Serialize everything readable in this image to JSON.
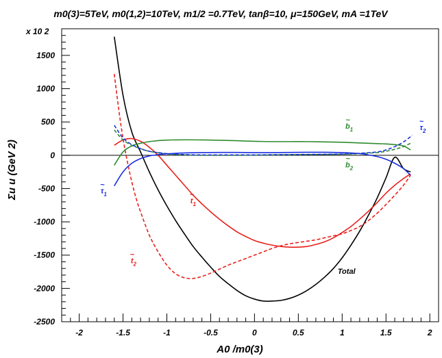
{
  "chart_data": {
    "type": "line",
    "title": "m0(3)=5TeV, m0(1,2)=10TeV, m1/2 =0.7TeV, tanβ=10, μ=150GeV, mA =1TeV",
    "xlabel": "A0 /m0(3)",
    "ylabel": "Σu u (GeV 2)",
    "y_multiplier": "x 10 2",
    "xlim": [
      -2.2,
      2.1
    ],
    "ylim": [
      -2500,
      1900
    ],
    "xticks": [
      "-2",
      "-1.5",
      "-1",
      "-0.5",
      "0",
      "0.5",
      "1",
      "1.5",
      "2"
    ],
    "yticks": [
      "-2500",
      "-2000",
      "-1500",
      "-1000",
      "-500",
      "0",
      "500",
      "1000",
      "1500"
    ],
    "grid": false,
    "zero_line": true,
    "series": [
      {
        "name": "Total",
        "color": "#000000",
        "style": "solid",
        "x": [
          -1.6,
          -1.5,
          -1.4,
          -1.3,
          -1.2,
          -1.1,
          -1.0,
          -0.9,
          -0.8,
          -0.7,
          -0.6,
          -0.5,
          -0.4,
          -0.3,
          -0.2,
          -0.1,
          0.0,
          0.1,
          0.2,
          0.3,
          0.4,
          0.5,
          0.6,
          0.7,
          0.8,
          0.9,
          1.0,
          1.1,
          1.2,
          1.3,
          1.4,
          1.5,
          1.6,
          1.7,
          1.78
        ],
        "y": [
          1780,
          900,
          350,
          50,
          -250,
          -520,
          -760,
          -980,
          -1180,
          -1370,
          -1530,
          -1680,
          -1820,
          -1930,
          -2030,
          -2110,
          -2160,
          -2190,
          -2190,
          -2180,
          -2150,
          -2100,
          -2030,
          -1940,
          -1830,
          -1700,
          -1540,
          -1350,
          -1140,
          -900,
          -640,
          -340,
          -30,
          -200,
          -250
        ]
      },
      {
        "name": "t1",
        "color": "#e8201a",
        "style": "solid",
        "x": [
          -1.6,
          -1.5,
          -1.4,
          -1.3,
          -1.2,
          -1.1,
          -1.0,
          -0.9,
          -0.8,
          -0.7,
          -0.6,
          -0.5,
          -0.4,
          -0.3,
          -0.2,
          -0.1,
          0.0,
          0.1,
          0.2,
          0.3,
          0.4,
          0.5,
          0.6,
          0.7,
          0.8,
          0.9,
          1.0,
          1.1,
          1.2,
          1.3,
          1.4,
          1.5,
          1.6,
          1.7,
          1.78
        ],
        "y": [
          150,
          230,
          250,
          210,
          120,
          0,
          -150,
          -300,
          -450,
          -600,
          -730,
          -850,
          -960,
          -1060,
          -1150,
          -1220,
          -1280,
          -1320,
          -1350,
          -1370,
          -1380,
          -1380,
          -1370,
          -1340,
          -1300,
          -1240,
          -1160,
          -1070,
          -960,
          -840,
          -710,
          -570,
          -450,
          -350,
          -280
        ]
      },
      {
        "name": "t2",
        "color": "#e8201a",
        "style": "dashed",
        "x": [
          -1.6,
          -1.55,
          -1.5,
          -1.45,
          -1.4,
          -1.35,
          -1.3,
          -1.2,
          -1.1,
          -1.0,
          -0.9,
          -0.8,
          -0.7,
          -0.6,
          -0.5,
          -0.4,
          -0.3,
          -0.2,
          -0.1,
          0.0,
          0.1,
          0.2,
          0.3,
          0.4,
          0.5,
          0.6,
          0.7,
          0.8,
          0.9,
          1.0,
          1.1,
          1.2,
          1.3,
          1.4,
          1.5,
          1.6,
          1.7,
          1.78
        ],
        "y": [
          1220,
          700,
          250,
          -100,
          -400,
          -650,
          -850,
          -1200,
          -1450,
          -1650,
          -1780,
          -1840,
          -1850,
          -1820,
          -1770,
          -1710,
          -1650,
          -1600,
          -1550,
          -1500,
          -1450,
          -1400,
          -1360,
          -1330,
          -1310,
          -1290,
          -1270,
          -1240,
          -1210,
          -1180,
          -1130,
          -1070,
          -980,
          -870,
          -740,
          -600,
          -450,
          -300
        ]
      },
      {
        "name": "b1",
        "color": "#2e8b2e",
        "style": "solid",
        "x": [
          -1.6,
          -1.5,
          -1.4,
          -1.3,
          -1.2,
          -1.1,
          -1.0,
          -0.8,
          -0.6,
          -0.4,
          -0.2,
          0.0,
          0.2,
          0.4,
          0.6,
          0.8,
          1.0,
          1.2,
          1.4,
          1.5,
          1.6,
          1.7,
          1.78
        ],
        "y": [
          -150,
          50,
          140,
          180,
          205,
          220,
          228,
          232,
          230,
          225,
          218,
          210,
          205,
          205,
          205,
          200,
          195,
          185,
          175,
          170,
          160,
          140,
          80
        ]
      },
      {
        "name": "b2",
        "color": "#2e8b2e",
        "style": "dashed",
        "x": [
          -1.6,
          -1.5,
          -1.4,
          -1.3,
          -1.2,
          -1.0,
          -0.8,
          -0.6,
          -0.4,
          -0.2,
          0.0,
          0.2,
          0.4,
          0.6,
          0.8,
          1.0,
          1.2,
          1.4,
          1.5,
          1.6,
          1.7,
          1.78
        ],
        "y": [
          380,
          230,
          150,
          100,
          60,
          20,
          5,
          0,
          0,
          0,
          2,
          5,
          8,
          10,
          12,
          15,
          25,
          40,
          60,
          90,
          130,
          180
        ]
      },
      {
        "name": "tau1",
        "color": "#1a2ee0",
        "style": "solid",
        "x": [
          -1.6,
          -1.5,
          -1.4,
          -1.3,
          -1.2,
          -1.1,
          -1.0,
          -0.8,
          -0.6,
          -0.4,
          -0.2,
          0.0,
          0.2,
          0.4,
          0.6,
          0.8,
          1.0,
          1.2,
          1.4,
          1.5,
          1.6,
          1.7,
          1.78
        ],
        "y": [
          -460,
          -250,
          -120,
          -50,
          -10,
          10,
          22,
          35,
          40,
          42,
          42,
          40,
          40,
          42,
          45,
          45,
          40,
          25,
          -20,
          -60,
          -120,
          -200,
          -300
        ]
      },
      {
        "name": "tau2",
        "color": "#1a2ee0",
        "style": "dashed",
        "x": [
          -1.6,
          -1.5,
          -1.4,
          -1.3,
          -1.2,
          -1.0,
          -0.8,
          -0.6,
          -0.4,
          -0.2,
          0.0,
          0.2,
          0.4,
          0.6,
          0.8,
          1.0,
          1.2,
          1.4,
          1.5,
          1.6,
          1.7,
          1.8
        ],
        "y": [
          450,
          260,
          160,
          100,
          60,
          25,
          10,
          5,
          5,
          5,
          5,
          8,
          10,
          12,
          14,
          18,
          30,
          50,
          80,
          130,
          200,
          300
        ]
      }
    ],
    "annotations": [
      {
        "id": "b1",
        "base": "b",
        "sub": "1",
        "x": 1.08,
        "y": 400,
        "color": "#2e8b2e"
      },
      {
        "id": "b2",
        "base": "b",
        "sub": "2",
        "x": 1.08,
        "y": -180,
        "color": "#2e8b2e"
      },
      {
        "id": "t1",
        "base": "t",
        "sub": "1",
        "x": -0.7,
        "y": -720,
        "color": "#e8201a"
      },
      {
        "id": "t2",
        "base": "t",
        "sub": "2",
        "x": -1.38,
        "y": -1620,
        "color": "#e8201a"
      },
      {
        "id": "tau1",
        "base": "τ",
        "sub": "1",
        "x": -1.72,
        "y": -570,
        "color": "#1a2ee0"
      },
      {
        "id": "tau2",
        "base": "τ",
        "sub": "2",
        "x": 1.92,
        "y": 380,
        "color": "#1a2ee0"
      },
      {
        "id": "total",
        "base": "Total",
        "sub": "",
        "x": 1.05,
        "y": -1780,
        "color": "#000000"
      }
    ]
  }
}
